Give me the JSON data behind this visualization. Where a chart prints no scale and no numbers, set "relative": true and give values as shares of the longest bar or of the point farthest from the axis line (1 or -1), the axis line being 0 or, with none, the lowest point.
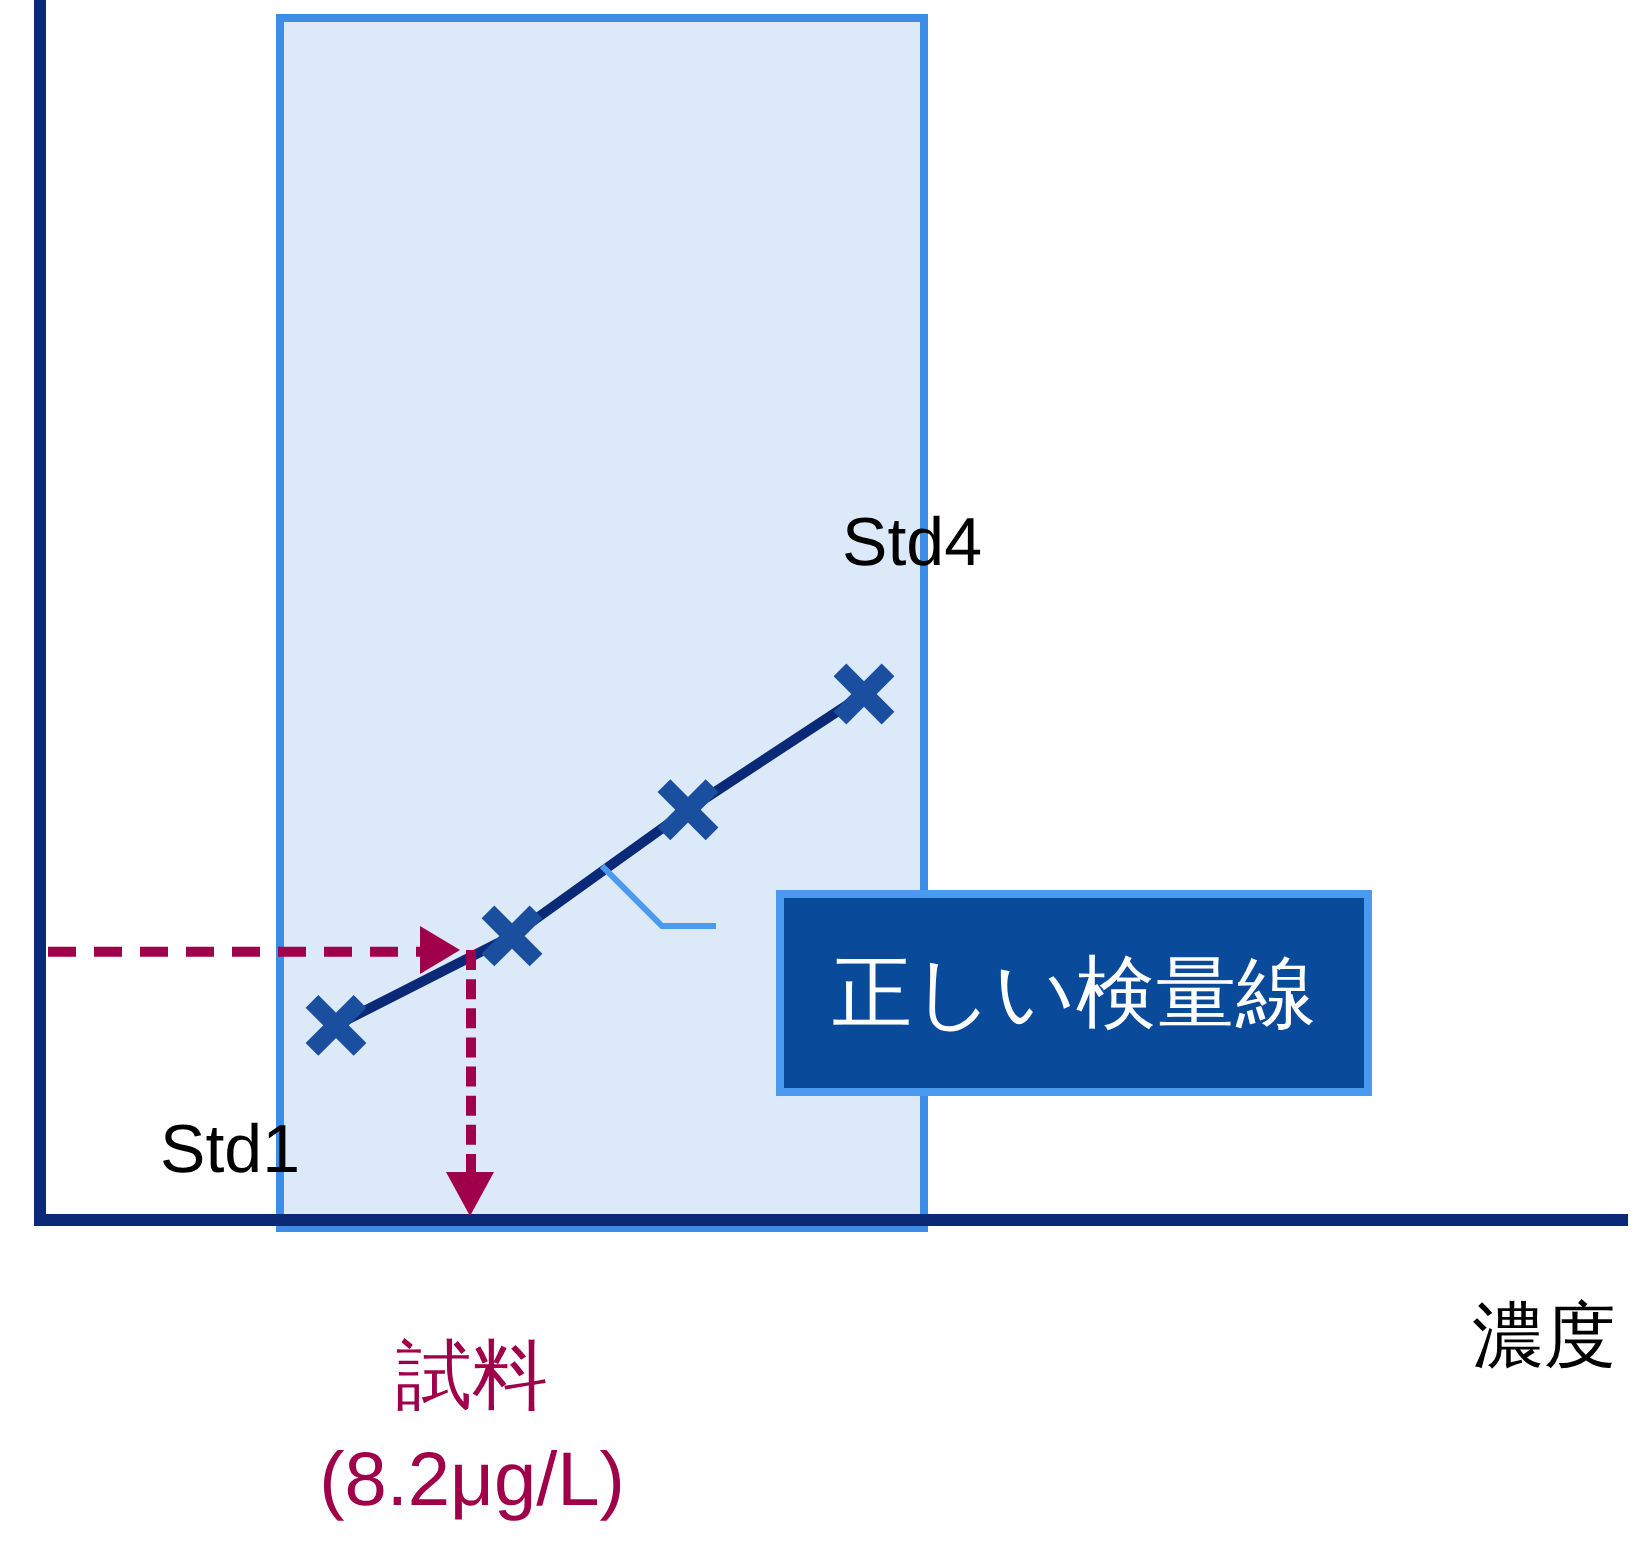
{
  "chart_data": {
    "type": "line",
    "relative": true,
    "marker": "cross",
    "line_style": "solid",
    "ref_lines": [
      {
        "axis": "y",
        "value": 0.51,
        "color": "#a0004a",
        "line_style": "dashed"
      }
    ],
    "categories": [
      null,
      null,
      null,
      null
    ],
    "series": [
      {
        "color": "#0a2a78",
        "values": [
          0.37,
          0.54,
          0.78,
          1
        ]
      }
    ],
    "annotations": [
      "Std1",
      "Std4",
      "正しい検量線",
      "試料\n(8.2μg/L)",
      "濃度"
    ]
  }
}
